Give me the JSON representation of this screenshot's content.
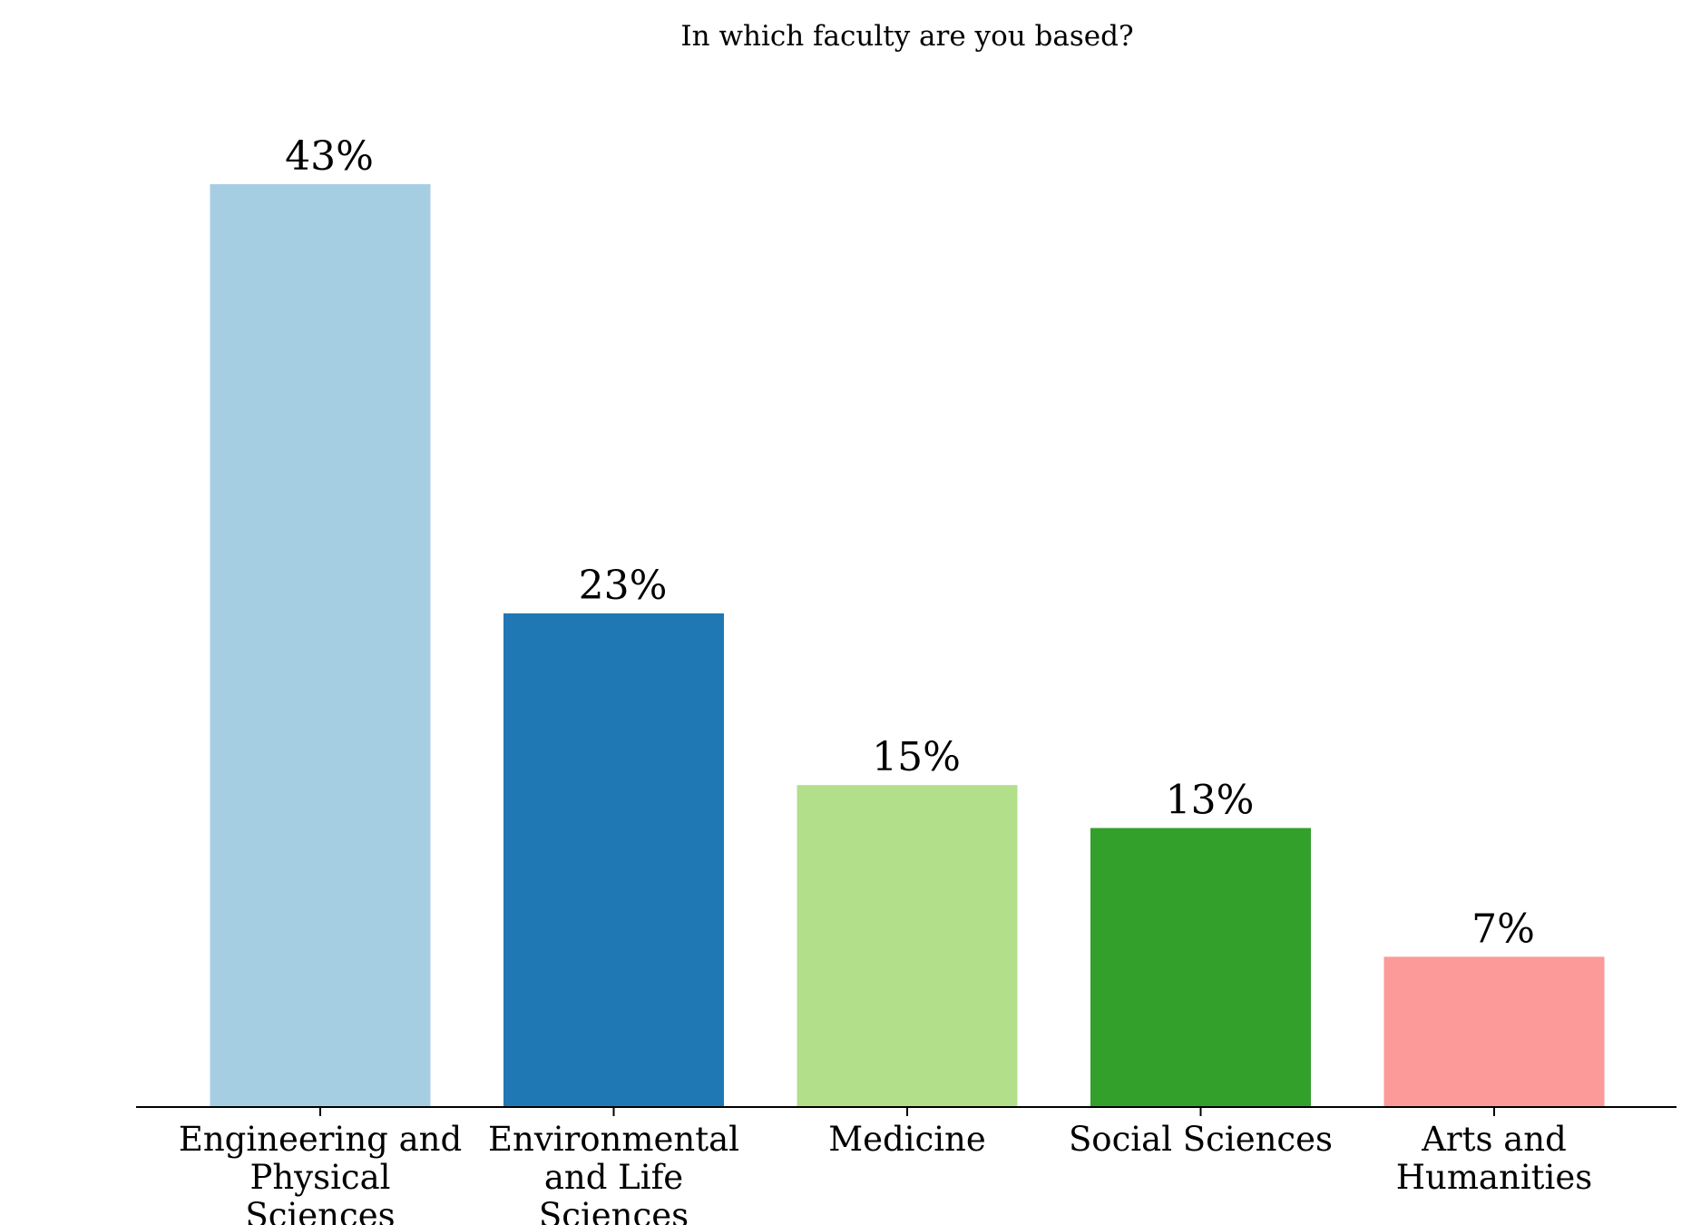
{
  "chart_data": {
    "type": "bar",
    "title": "In which faculty are you based?",
    "xlabel": "",
    "ylabel": "",
    "categories": [
      [
        "Engineering and",
        "Physical",
        "Sciences"
      ],
      [
        "Environmental",
        "and Life",
        "Sciences"
      ],
      [
        "Medicine"
      ],
      [
        "Social Sciences"
      ],
      [
        "Arts and",
        "Humanities"
      ]
    ],
    "values": [
      43,
      23,
      15,
      13,
      7
    ],
    "data_labels": [
      "43%",
      "23%",
      "15%",
      "13%",
      "7%"
    ],
    "colors": [
      "#a6cee3",
      "#1f78b4",
      "#b2df8a",
      "#33a02c",
      "#fb9a99"
    ],
    "ylim": [
      0,
      45
    ],
    "grid": false,
    "legend": "none"
  }
}
